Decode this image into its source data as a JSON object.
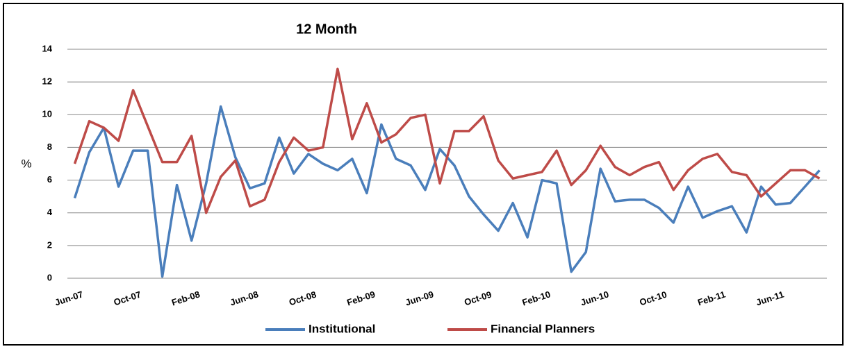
{
  "chart_data": {
    "type": "line",
    "title": "12 Month",
    "y_label": "%",
    "categories": [
      "Jun-07",
      null,
      null,
      null,
      "Oct-07",
      null,
      null,
      null,
      "Feb-08",
      null,
      null,
      null,
      "Jun-08",
      null,
      null,
      null,
      "Oct-08",
      null,
      null,
      null,
      "Feb-09",
      null,
      null,
      null,
      "Jun-09",
      null,
      null,
      null,
      "Oct-09",
      null,
      null,
      null,
      "Feb-10",
      null,
      null,
      null,
      "Jun-10",
      null,
      null,
      null,
      "Oct-10",
      null,
      null,
      null,
      "Feb-11",
      null,
      null,
      null,
      "Jun-11",
      null,
      null,
      null
    ],
    "series": [
      {
        "name": "Institutional",
        "color": "#4a7ebb",
        "values": [
          4.9,
          7.7,
          9.2,
          5.6,
          7.8,
          7.8,
          0.1,
          5.7,
          2.3,
          5.8,
          10.5,
          7.4,
          5.5,
          5.8,
          8.6,
          6.4,
          7.6,
          7.0,
          6.6,
          7.3,
          5.2,
          9.4,
          7.3,
          6.9,
          5.4,
          7.9,
          6.9,
          5.0,
          3.9,
          2.9,
          4.6,
          2.5,
          6.0,
          5.8,
          0.4,
          1.6,
          6.7,
          4.7,
          4.8,
          4.8,
          4.3,
          3.4,
          5.6,
          3.7,
          4.1,
          4.4,
          2.8,
          5.6,
          4.5,
          4.6,
          5.6,
          6.6
        ]
      },
      {
        "name": "Financial Planners",
        "color": "#be4b48",
        "values": [
          7.0,
          9.6,
          9.2,
          8.4,
          11.5,
          9.3,
          7.1,
          7.1,
          8.7,
          4.0,
          6.2,
          7.2,
          4.4,
          4.8,
          7.1,
          8.6,
          7.8,
          8.0,
          12.8,
          8.5,
          10.7,
          8.3,
          8.8,
          9.8,
          10.0,
          5.8,
          9.0,
          9.0,
          9.9,
          7.2,
          6.1,
          6.3,
          6.5,
          7.8,
          5.7,
          6.6,
          8.1,
          6.8,
          6.3,
          6.8,
          7.1,
          5.4,
          6.6,
          7.3,
          7.6,
          6.5,
          6.3,
          5.0,
          5.8,
          6.6,
          6.6,
          6.1
        ]
      }
    ],
    "ylim": [
      0,
      14
    ],
    "yticks": [
      0,
      2,
      4,
      6,
      8,
      10,
      12,
      14
    ],
    "grid": true,
    "legend": "bottom"
  }
}
